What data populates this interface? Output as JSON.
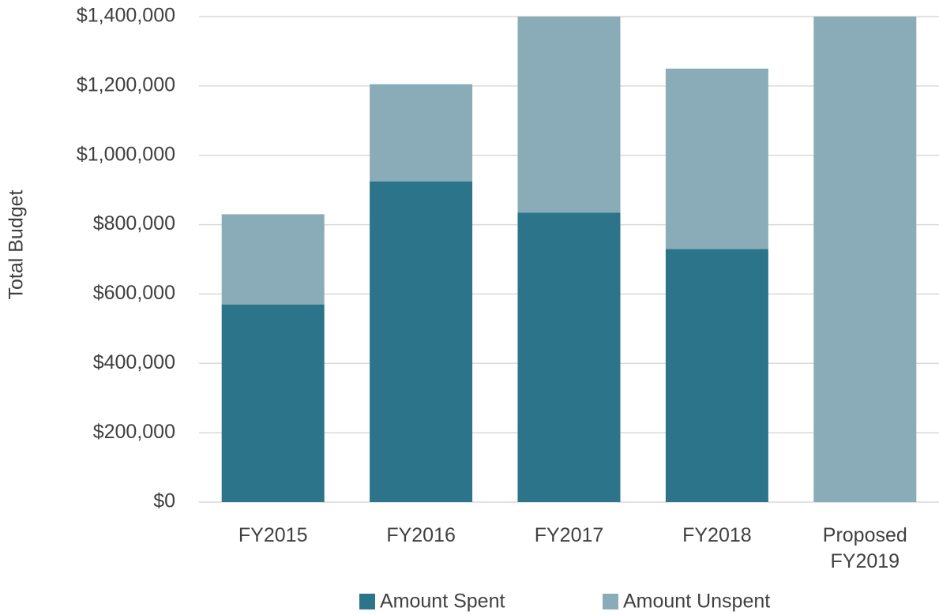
{
  "chart_data": {
    "type": "stacked_bar",
    "y_label": "Total Budget",
    "categories": [
      "FY2015",
      "FY2016",
      "FY2017",
      "FY2018",
      "Proposed FY2019"
    ],
    "series": [
      {
        "name": "Amount Spent",
        "color": "#2b7489",
        "values": [
          570000,
          925000,
          835000,
          730000,
          0
        ]
      },
      {
        "name": "Amount Unspent",
        "color": "#8aacb8",
        "values": [
          260000,
          280000,
          565000,
          520000,
          1400000
        ]
      }
    ],
    "ylim": [
      0,
      1400000
    ],
    "yticks": [
      {
        "value": 0,
        "label": "$0"
      },
      {
        "value": 200000,
        "label": "$200,000"
      },
      {
        "value": 400000,
        "label": "$400,000"
      },
      {
        "value": 600000,
        "label": "$600,000"
      },
      {
        "value": 800000,
        "label": "$800,000"
      },
      {
        "value": 1000000,
        "label": "$1,000,000"
      },
      {
        "value": 1200000,
        "label": "$1,200,000"
      },
      {
        "value": 1400000,
        "label": "$1,400,000"
      }
    ],
    "grid": true,
    "legend": "bottom"
  }
}
